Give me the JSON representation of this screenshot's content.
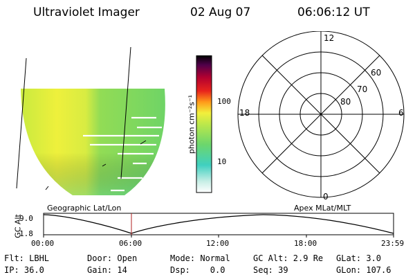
{
  "header": {
    "instrument": "Ultraviolet Imager",
    "date": "02 Aug 07",
    "time": "06:06:12 UT"
  },
  "colorbar": {
    "unit": "photon cm⁻²s⁻¹",
    "ticks": [
      "100",
      "10"
    ]
  },
  "polar_plot": {
    "mlt_labels": {
      "top": "12",
      "left": "18",
      "right": "6",
      "bottom": "0"
    },
    "lat_labels": [
      "60",
      "70",
      "80"
    ]
  },
  "projections": {
    "left": "Geographic Lat/Lon",
    "right": "Apex MLat/MLT"
  },
  "altitude_plot": {
    "ylabel": "GC Alt",
    "y_ticks": [
      "9.0",
      "1.8"
    ],
    "x_ticks": [
      "00:00",
      "06:00",
      "12:00",
      "18:00",
      "23:59"
    ],
    "marker_color": "#b22222"
  },
  "status": {
    "flt": "Flt: LBHL",
    "door": "Door: Open",
    "mode": "Mode: Normal",
    "gc_alt": "GC Alt: 2.9 Re",
    "glat": "GLat:  3.0",
    "ip": "IP: 36.0",
    "gain": "Gain: 14",
    "dsp": "Dsp:    0.0",
    "seq": "Seq: 39",
    "glon": "GLon: 107.6"
  },
  "colors": {
    "image_bright": "#e9ef3d",
    "image_mid": "#a8e04a",
    "image_dim": "#5fd070"
  }
}
